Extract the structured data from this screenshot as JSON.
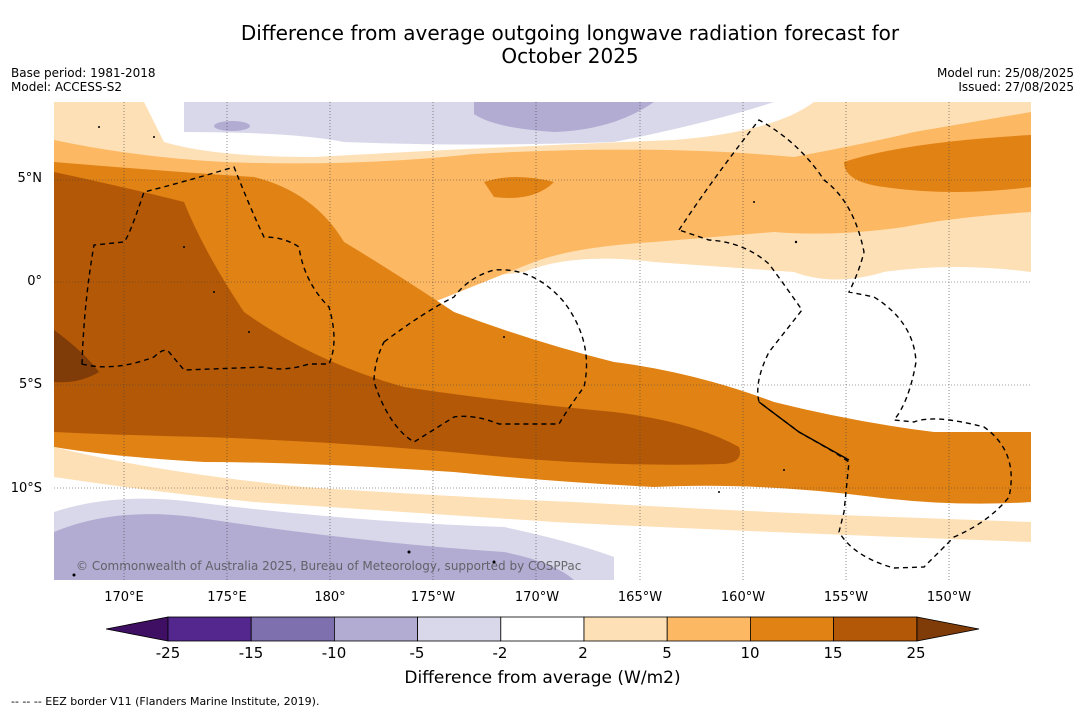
{
  "title_line1": "Difference from average outgoing longwave radiation forecast for",
  "title_line2": "October 2025",
  "base_period": "Base period: 1981-2018",
  "model": "Model: ACCESS-S2",
  "model_run": "Model run: 25/08/2025",
  "issued": "Issued: 27/08/2025",
  "copyright": "© Commonwealth of Australia 2025, Bureau of Meteorology, supported by COSPPac",
  "lat_labels": [
    "5°N",
    "0°",
    "5°S",
    "10°S"
  ],
  "lon_labels": [
    "170°E",
    "175°E",
    "180°",
    "175°W",
    "170°W",
    "165°W",
    "160°W",
    "155°W",
    "150°W"
  ],
  "colorbar": {
    "label": "Difference from average (W/m2)",
    "ticks": [
      "-25",
      "-15",
      "-10",
      "-5",
      "-2",
      "2",
      "5",
      "10",
      "15",
      "25"
    ],
    "colors": [
      "#3f0f63",
      "#54278f",
      "#7e6fae",
      "#b2abd2",
      "#d8d8ea",
      "#ffffff",
      "#fee0b6",
      "#fdb863",
      "#e08214",
      "#b35806",
      "#7f3b08"
    ]
  },
  "footer": "-- -- -- EEZ border V11 (Flanders Marine Institute, 2019)."
}
